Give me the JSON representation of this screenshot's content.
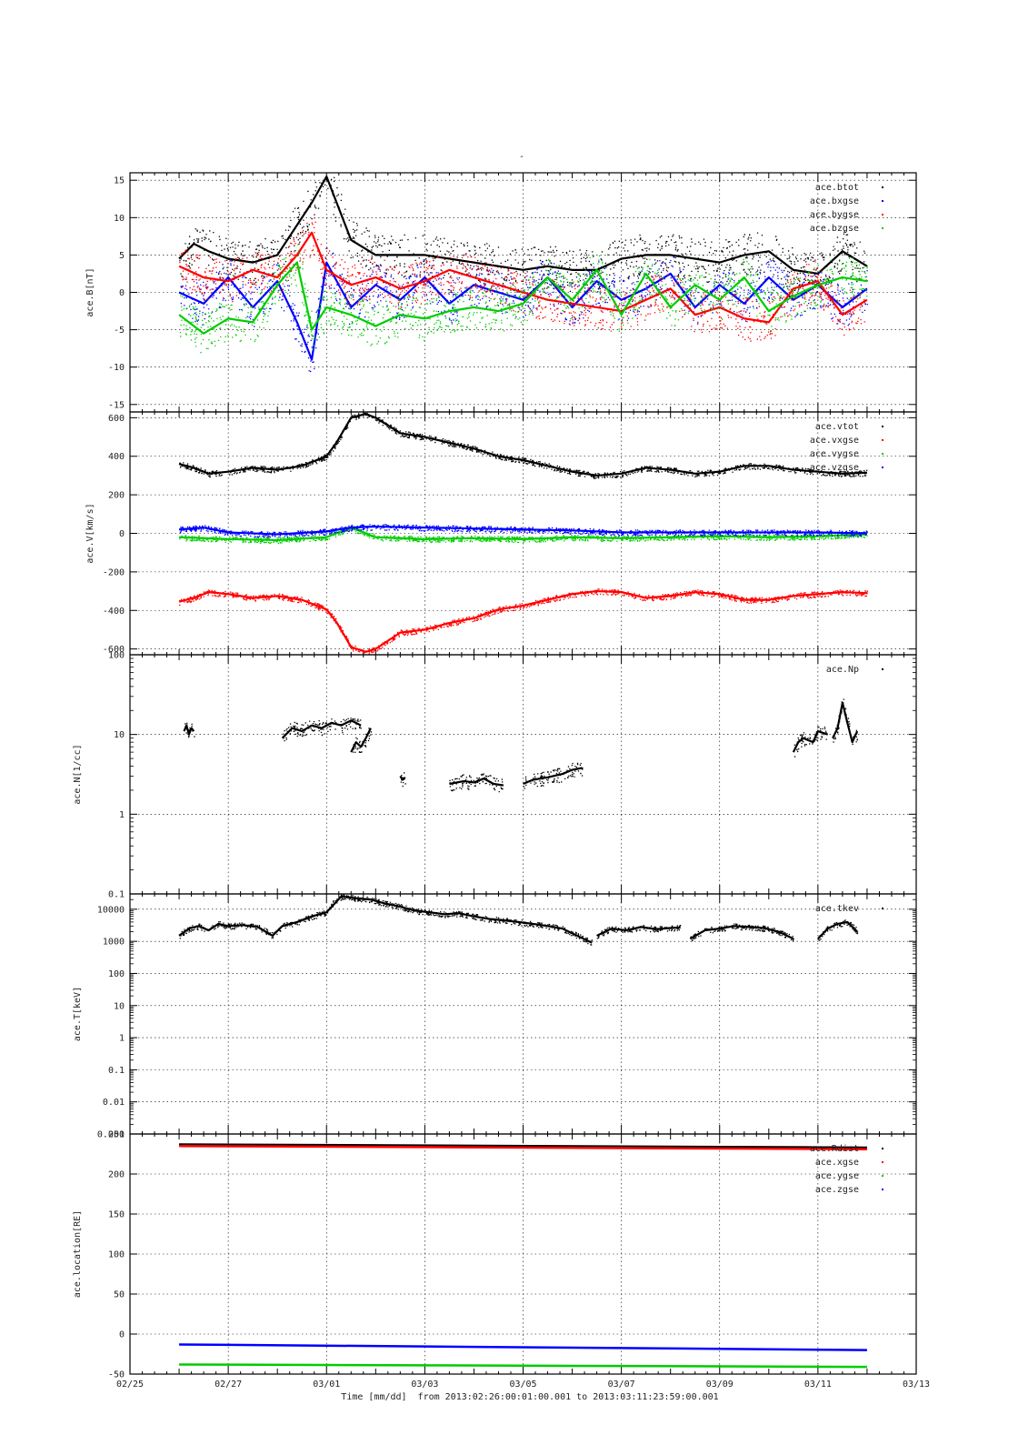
{
  "figure": {
    "title": "-",
    "xlabel_prefix": "Time [mm/dd]",
    "xlabel_range": "from 2013:02:26:00:01:00.001  to  2013:03:11:23:59:00.001",
    "x_tick_labels": [
      "02/25",
      "02/27",
      "03/01",
      "03/03",
      "03/05",
      "03/07",
      "03/09",
      "03/11",
      "03/13"
    ]
  },
  "chart_data": [
    {
      "type": "scatter",
      "ylabel": "ace.B[nT]",
      "ylim": [
        -16,
        16
      ],
      "yticks": [
        15,
        10,
        5,
        0,
        -5,
        -10,
        -15
      ],
      "xlim": [
        0,
        16
      ],
      "x_unit": "days since 02/25",
      "grid": true,
      "legend_position": "top-right",
      "series": [
        {
          "name": "ace.btot",
          "color": "#000000",
          "x": [
            1.0,
            1.3,
            1.6,
            2.0,
            2.5,
            3.0,
            3.4,
            3.7,
            4.0,
            4.5,
            5.0,
            5.5,
            6.0,
            6.5,
            7.0,
            7.5,
            8.0,
            8.5,
            9.0,
            9.5,
            10.0,
            10.5,
            11.0,
            11.5,
            12.0,
            12.5,
            13.0,
            13.5,
            14.0,
            14.5,
            15.0
          ],
          "y": [
            4.5,
            6.5,
            5.5,
            4.5,
            4.0,
            5.0,
            9.0,
            12.0,
            15.5,
            7.0,
            5.0,
            5.0,
            5.0,
            4.5,
            4.0,
            3.5,
            3.0,
            3.5,
            3.0,
            3.0,
            4.5,
            5.0,
            5.0,
            4.5,
            4.0,
            5.0,
            5.5,
            3.0,
            2.5,
            5.5,
            3.5
          ]
        },
        {
          "name": "ace.bxgse",
          "color": "#0000ff",
          "x": [
            1.0,
            1.5,
            2.0,
            2.5,
            3.0,
            3.4,
            3.7,
            4.0,
            4.5,
            5.0,
            5.5,
            6.0,
            6.5,
            7.0,
            7.5,
            8.0,
            8.5,
            9.0,
            9.5,
            10.0,
            10.5,
            11.0,
            11.5,
            12.0,
            12.5,
            13.0,
            13.5,
            14.0,
            14.5,
            15.0
          ],
          "y": [
            0.0,
            -1.5,
            2.0,
            -2.0,
            1.5,
            -4.0,
            -9.0,
            4.0,
            -2.0,
            1.0,
            -1.0,
            2.0,
            -1.5,
            1.0,
            0.0,
            -1.0,
            2.0,
            -2.0,
            1.5,
            -1.0,
            0.5,
            2.5,
            -2.0,
            1.0,
            -1.5,
            2.0,
            -1.0,
            1.0,
            -2.0,
            0.5
          ]
        },
        {
          "name": "ace.bygse",
          "color": "#ff0000",
          "x": [
            1.0,
            1.5,
            2.0,
            2.5,
            3.0,
            3.4,
            3.7,
            4.0,
            4.5,
            5.0,
            5.5,
            6.0,
            6.5,
            7.0,
            7.5,
            8.0,
            8.5,
            9.0,
            9.5,
            10.0,
            10.5,
            11.0,
            11.5,
            12.0,
            12.5,
            13.0,
            13.5,
            14.0,
            14.5,
            15.0
          ],
          "y": [
            3.5,
            2.0,
            1.5,
            3.0,
            2.0,
            5.0,
            8.0,
            3.0,
            1.0,
            2.0,
            0.5,
            1.5,
            3.0,
            2.0,
            1.0,
            0.0,
            -1.0,
            -1.5,
            -2.0,
            -2.5,
            -1.0,
            0.5,
            -3.0,
            -2.0,
            -3.5,
            -4.0,
            0.5,
            1.5,
            -3.0,
            -1.0
          ]
        },
        {
          "name": "ace.bzgse",
          "color": "#00cc00",
          "x": [
            1.0,
            1.5,
            2.0,
            2.5,
            3.0,
            3.4,
            3.7,
            4.0,
            4.5,
            5.0,
            5.5,
            6.0,
            6.5,
            7.0,
            7.5,
            8.0,
            8.5,
            9.0,
            9.5,
            10.0,
            10.5,
            11.0,
            11.5,
            12.0,
            12.5,
            13.0,
            13.5,
            14.0,
            14.5,
            15.0
          ],
          "y": [
            -3.0,
            -5.5,
            -3.5,
            -4.0,
            1.0,
            4.0,
            -5.0,
            -2.0,
            -3.0,
            -4.5,
            -3.0,
            -3.5,
            -2.5,
            -2.0,
            -2.5,
            -1.5,
            2.0,
            -1.0,
            3.0,
            -3.0,
            2.5,
            -2.0,
            1.0,
            -1.0,
            2.0,
            -2.5,
            -0.5,
            1.0,
            2.0,
            1.5
          ]
        }
      ]
    },
    {
      "type": "scatter",
      "ylabel": "ace.V[km/s]",
      "ylim": [
        -630,
        630
      ],
      "yticks": [
        600,
        400,
        200,
        0,
        -200,
        -400,
        -600
      ],
      "xlim": [
        0,
        16
      ],
      "x_unit": "days since 02/25",
      "grid": true,
      "legend_position": "top-right",
      "series": [
        {
          "name": "ace.vtot",
          "color": "#000000",
          "x": [
            1.0,
            1.3,
            1.6,
            2.0,
            2.5,
            3.0,
            3.5,
            4.0,
            4.2,
            4.5,
            4.8,
            5.0,
            5.5,
            6.0,
            6.5,
            7.0,
            7.5,
            8.0,
            8.5,
            9.0,
            9.5,
            10.0,
            10.5,
            11.0,
            11.5,
            12.0,
            12.5,
            13.0,
            13.5,
            14.0,
            14.5,
            15.0
          ],
          "y": [
            360,
            340,
            310,
            320,
            340,
            330,
            350,
            400,
            470,
            600,
            620,
            600,
            520,
            500,
            470,
            440,
            400,
            380,
            350,
            320,
            300,
            310,
            340,
            330,
            310,
            320,
            350,
            350,
            330,
            320,
            310,
            315
          ]
        },
        {
          "name": "ace.vxgse",
          "color": "#ff0000",
          "x": [
            1.0,
            1.3,
            1.6,
            2.0,
            2.5,
            3.0,
            3.5,
            4.0,
            4.2,
            4.5,
            4.8,
            5.0,
            5.5,
            6.0,
            6.5,
            7.0,
            7.5,
            8.0,
            8.5,
            9.0,
            9.5,
            10.0,
            10.5,
            11.0,
            11.5,
            12.0,
            12.5,
            13.0,
            13.5,
            14.0,
            14.5,
            15.0
          ],
          "y": [
            -355,
            -335,
            -305,
            -315,
            -335,
            -325,
            -345,
            -395,
            -460,
            -590,
            -615,
            -600,
            -515,
            -500,
            -465,
            -440,
            -395,
            -375,
            -345,
            -315,
            -300,
            -305,
            -335,
            -325,
            -305,
            -315,
            -345,
            -345,
            -325,
            -315,
            -305,
            -310
          ]
        },
        {
          "name": "ace.vygse",
          "color": "#00cc00",
          "x": [
            1.0,
            2.0,
            3.0,
            4.0,
            4.5,
            5.0,
            6.0,
            7.0,
            8.0,
            9.0,
            10.0,
            11.0,
            12.0,
            13.0,
            14.0,
            15.0
          ],
          "y": [
            -20,
            -30,
            -35,
            -20,
            30,
            -20,
            -30,
            -25,
            -30,
            -20,
            -25,
            -20,
            -15,
            -20,
            -15,
            -5
          ]
        },
        {
          "name": "ace.vzgse",
          "color": "#0000ff",
          "x": [
            1.0,
            1.5,
            2.0,
            3.0,
            4.0,
            4.5,
            5.0,
            6.0,
            7.0,
            8.0,
            9.0,
            10.0,
            11.0,
            12.0,
            13.0,
            14.0,
            15.0
          ],
          "y": [
            20,
            30,
            5,
            -5,
            10,
            30,
            35,
            30,
            25,
            20,
            15,
            5,
            5,
            5,
            5,
            5,
            0
          ]
        }
      ]
    },
    {
      "type": "scatter",
      "ylabel": "ace.N[1/cc]",
      "yscale": "log",
      "ylim": [
        0.1,
        100
      ],
      "yticks": [
        100,
        10,
        1,
        0.1
      ],
      "ytick_labels": [
        "100",
        "10",
        "1",
        "0.1"
      ],
      "xlim": [
        0,
        16
      ],
      "x_unit": "days since 02/25",
      "grid": true,
      "legend_position": "top-right",
      "series": [
        {
          "name": "ace.Np",
          "color": "#000000",
          "segments": [
            {
              "x": [
                1.1,
                1.15,
                1.2,
                1.25,
                1.3
              ],
              "y": [
                11,
                13,
                10,
                12,
                11
              ]
            },
            {
              "x": [
                3.1,
                3.3,
                3.5,
                3.7,
                3.9,
                4.1,
                4.3,
                4.5,
                4.7
              ],
              "y": [
                9,
                12,
                11,
                13,
                12,
                14,
                13,
                15,
                13
              ]
            },
            {
              "x": [
                4.5,
                4.6,
                4.7,
                4.8,
                4.9
              ],
              "y": [
                6,
                8,
                7,
                9,
                12
              ]
            },
            {
              "x": [
                5.5,
                5.55,
                5.6
              ],
              "y": [
                3,
                2.7,
                2.9
              ]
            },
            {
              "x": [
                6.5,
                6.8,
                7.0,
                7.2,
                7.4,
                7.6
              ],
              "y": [
                2.4,
                2.6,
                2.5,
                2.8,
                2.4,
                2.3
              ]
            },
            {
              "x": [
                8.0,
                8.2,
                8.5,
                8.8,
                9.0,
                9.2
              ],
              "y": [
                2.4,
                2.7,
                2.9,
                3.2,
                3.6,
                3.8
              ]
            },
            {
              "x": [
                13.5,
                13.6,
                13.7,
                13.9,
                14.0,
                14.2
              ],
              "y": [
                6,
                8,
                9,
                8,
                11,
                10
              ]
            },
            {
              "x": [
                14.3,
                14.4,
                14.5,
                14.6,
                14.7,
                14.8
              ],
              "y": [
                9,
                12,
                25,
                14,
                8,
                11
              ]
            }
          ]
        }
      ]
    },
    {
      "type": "scatter",
      "ylabel": "ace.T[keV]",
      "yscale": "log",
      "ylim": [
        0.001,
        30000
      ],
      "yticks": [
        10000,
        1000,
        100,
        10,
        1,
        0.1,
        0.01,
        0.001
      ],
      "ytick_labels": [
        "10000",
        "1000",
        "100",
        "10",
        "1",
        "0.1",
        "0.01",
        "0.001"
      ],
      "xlim": [
        0,
        16
      ],
      "x_unit": "days since 02/25",
      "grid": true,
      "legend_position": "top-right",
      "series": [
        {
          "name": "ace.tkev",
          "color": "#000000",
          "segments": [
            {
              "x": [
                1.0,
                1.2,
                1.4,
                1.6,
                1.8,
                2.0,
                2.3,
                2.6,
                2.9,
                3.1,
                3.4,
                3.7,
                4.0,
                4.3,
                4.6,
                4.9,
                5.2,
                5.5,
                5.8,
                6.1,
                6.4,
                6.7,
                7.0,
                7.3,
                7.6,
                7.9,
                8.2,
                8.5,
                8.8,
                9.1,
                9.4
              ],
              "y": [
                1500,
                2500,
                3000,
                2200,
                3500,
                3000,
                3200,
                2800,
                1500,
                3000,
                4000,
                6000,
                8000,
                25000,
                22000,
                20000,
                15000,
                12000,
                9000,
                8000,
                7000,
                7500,
                6000,
                5000,
                4500,
                4000,
                3500,
                3000,
                2500,
                1500,
                900
              ]
            },
            {
              "x": [
                9.5,
                9.8,
                10.1,
                10.4,
                10.7,
                11.0,
                11.2
              ],
              "y": [
                1500,
                2500,
                2200,
                2800,
                2400,
                2600,
                2700
              ]
            },
            {
              "x": [
                11.4,
                11.7,
                12.0,
                12.3,
                12.6,
                12.9,
                13.2,
                13.5
              ],
              "y": [
                1200,
                2200,
                2500,
                3000,
                2800,
                2600,
                2000,
                1200
              ]
            },
            {
              "x": [
                14.0,
                14.2,
                14.4,
                14.6,
                14.8
              ],
              "y": [
                1200,
                2500,
                3500,
                4000,
                2000
              ]
            }
          ]
        }
      ]
    },
    {
      "type": "line",
      "ylabel": "ace.location[RE]",
      "ylim": [
        -50,
        250
      ],
      "yticks": [
        250,
        200,
        150,
        100,
        50,
        0,
        -50
      ],
      "xlim": [
        0,
        16
      ],
      "x_unit": "days since 02/25",
      "grid": true,
      "legend_position": "top-right",
      "series": [
        {
          "name": "ace.Rdist",
          "color": "#000000",
          "x": [
            1.0,
            15.0
          ],
          "y": [
            237,
            233
          ]
        },
        {
          "name": "ace.xgse",
          "color": "#ff0000",
          "x": [
            1.0,
            15.0
          ],
          "y": [
            235,
            231
          ]
        },
        {
          "name": "ace.ygse",
          "color": "#00cc00",
          "x": [
            1.0,
            15.0
          ],
          "y": [
            -38,
            -41
          ]
        },
        {
          "name": "ace.zgse",
          "color": "#0000ff",
          "x": [
            1.0,
            15.0
          ],
          "y": [
            -13,
            -20
          ]
        }
      ]
    }
  ]
}
